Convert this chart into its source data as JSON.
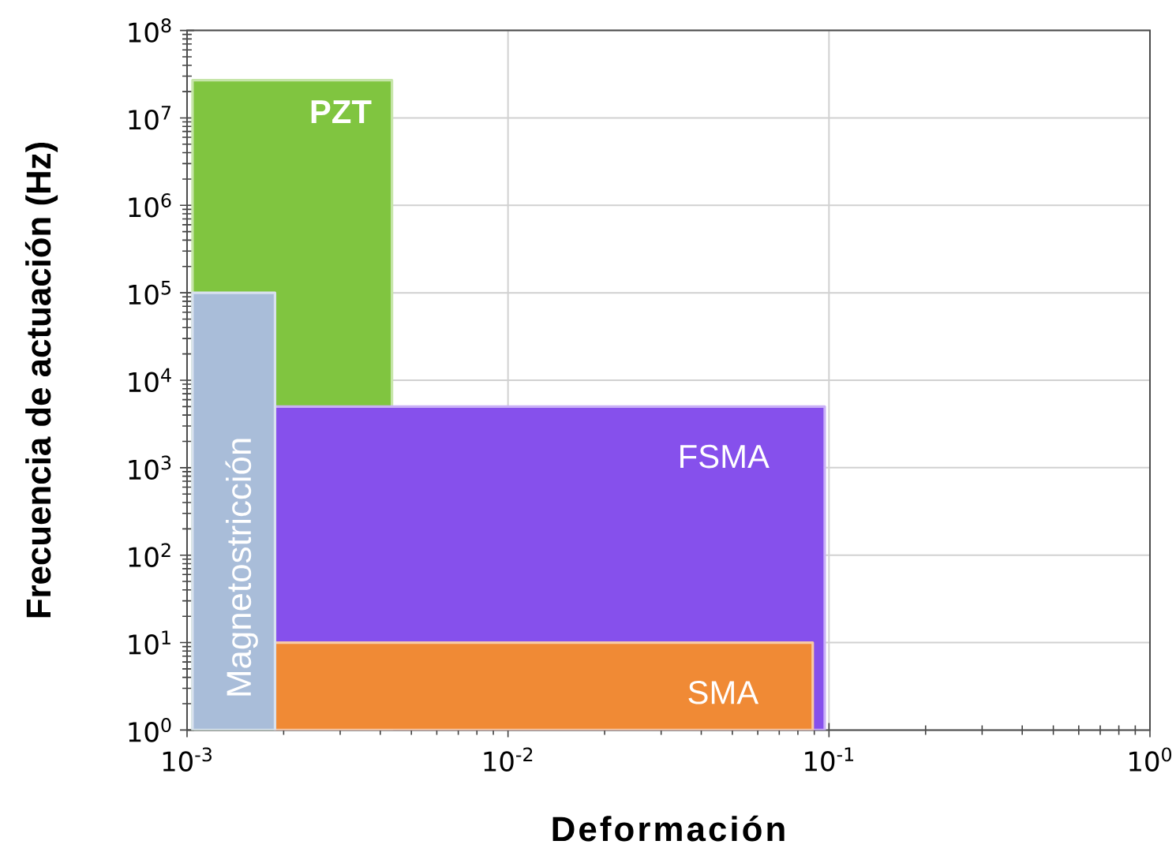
{
  "chart_data": {
    "type": "area",
    "xlabel": "Deformación",
    "ylabel": "Frecuencia de actuación (Hz)",
    "log": "xy",
    "grid": true,
    "xlim": [
      0.001,
      1
    ],
    "ylim": [
      1,
      100000000
    ],
    "xticks": [
      {
        "value": 0.001,
        "label": "10$^{-3}$"
      },
      {
        "value": 0.01,
        "label": "10$^{-2}$"
      },
      {
        "value": 0.1,
        "label": "10$^{-1}$"
      },
      {
        "value": 1,
        "label": "10$^{0}$"
      }
    ],
    "yticks": [
      {
        "value": 1,
        "label": "10$^{0}$"
      },
      {
        "value": 10,
        "label": "10$^{1}$"
      },
      {
        "value": 100,
        "label": "10$^{2}$"
      },
      {
        "value": 1000,
        "label": "10$^{3}$"
      },
      {
        "value": 10000,
        "label": "10$^{4}$"
      },
      {
        "value": 100000,
        "label": "10$^{5}$"
      },
      {
        "value": 1000000,
        "label": "10$^{6}$"
      },
      {
        "value": 10000000,
        "label": "10$^{7}$"
      },
      {
        "value": 100000000,
        "label": "10$^{8}$"
      }
    ],
    "series": [
      {
        "name": "PZT",
        "color": "#80c540",
        "x": [
          0.00104,
          0.00435
        ],
        "values": [
          27000000,
          27000000
        ]
      },
      {
        "name": "FSMA",
        "color": "#8650ec",
        "x": [
          0.00188,
          0.097
        ],
        "values": [
          5000,
          5000
        ]
      },
      {
        "name": "SMA",
        "color": "#f08a35",
        "x": [
          0.00188,
          0.089
        ],
        "values": [
          10,
          10
        ]
      },
      {
        "name": "Magnetostricción",
        "color": "#a9bdd9",
        "x": [
          0.00104,
          0.00188
        ],
        "values": [
          100000,
          100000
        ]
      }
    ]
  }
}
